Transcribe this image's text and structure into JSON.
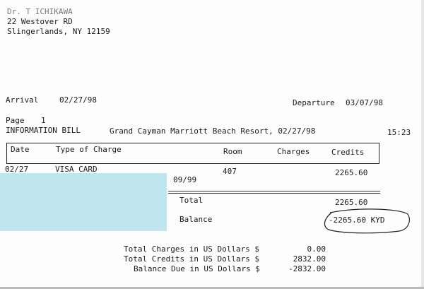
{
  "address": {
    "name": "Dr. T ICHIKAWA",
    "street": "22 Westover RD",
    "city": "Slingerlands, NY 12159"
  },
  "stay": {
    "arrival_label": "Arrival",
    "arrival": "02/27/98",
    "departure_label": "Departure",
    "departure": "03/07/98"
  },
  "bill": {
    "page_label": "Page",
    "page": "1",
    "title": "INFORMATION BILL",
    "hotel": "Grand Cayman Marriott Beach Resort, 02/27/98",
    "time": "15:23"
  },
  "table": {
    "headers": [
      "Date",
      "Type of Charge",
      "Room",
      "Charges",
      "Credits"
    ],
    "rows": [
      {
        "date": "02/27",
        "type": "VISA CARD",
        "room": "407",
        "charges": "",
        "credits": "2265.60",
        "expiry": "09/99"
      }
    ],
    "total_label": "Total",
    "total": "2265.60",
    "balance_label": "Balance",
    "balance": "-2265.60 KYD"
  },
  "usd": [
    {
      "label": "Total Charges in US Dollars $",
      "value": "0.00"
    },
    {
      "label": "Total Credits in US Dollars $",
      "value": "2832.00"
    },
    {
      "label": "Balance Due in US Dollars $",
      "value": "-2832.00"
    }
  ],
  "colors": {
    "redaction": "#bfe6ee"
  }
}
